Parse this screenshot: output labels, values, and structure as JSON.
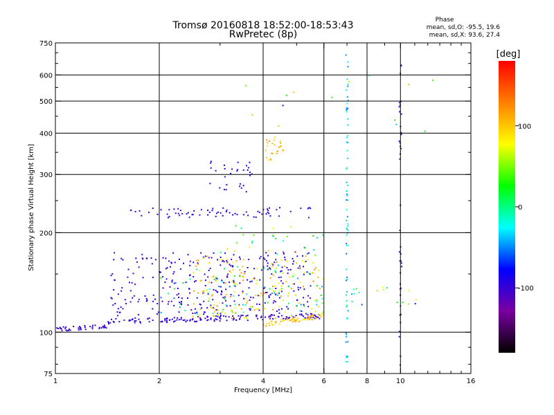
{
  "title": {
    "line1": "Tromsø 20160818 18:52:00-18:53:43",
    "line2": "RwPretec (8p)"
  },
  "phase_info": {
    "heading": "Phase",
    "line_o": "mean, sd,O: -95.5, 19.6",
    "line_x": "mean, sd,X:  93.6, 27.4"
  },
  "chart_data": {
    "type": "scatter",
    "xlabel": "Frequency [MHz]",
    "ylabel": "Stationary phase Virtual Height [km]",
    "x_scale": "log",
    "y_scale": "log",
    "xlim": [
      1,
      16
    ],
    "ylim": [
      75,
      750
    ],
    "x_ticks": [
      1,
      2,
      4,
      6,
      8,
      10,
      16
    ],
    "x_tick_labels": [
      "1",
      "2",
      "4",
      "6",
      "8",
      "10",
      "16"
    ],
    "x_minor_ticks": [
      3,
      5,
      7,
      9,
      11,
      12,
      13,
      14,
      15
    ],
    "y_ticks": [
      75,
      100,
      200,
      300,
      400,
      500,
      600,
      750
    ],
    "y_tick_labels": [
      "75",
      "100",
      "200",
      "300",
      "400",
      "500",
      "600",
      "750"
    ],
    "y_minor_ticks": [
      80,
      90,
      150,
      250,
      350,
      450,
      550,
      650,
      700
    ],
    "grid_x": [
      2,
      4,
      6,
      8,
      10
    ],
    "grid_y": [
      100,
      200,
      300,
      400,
      500,
      600
    ],
    "colorbar": {
      "label": "[deg]",
      "range": [
        -180,
        180
      ],
      "ticks": [
        -100,
        0,
        100
      ],
      "tick_labels": [
        "-100",
        "0",
        "100"
      ],
      "stops": [
        "#000000",
        "#7a00a0",
        "#0000ff",
        "#00ffff",
        "#00ff00",
        "#ffff00",
        "#ff7f00",
        "#ff0000"
      ]
    },
    "point_groups": [
      {
        "name": "o_low_trace",
        "x": [
          1.0,
          1.42
        ],
        "y": [
          102,
          104
        ],
        "spread": 1.5,
        "count": 40,
        "phase": [
          -110,
          -90
        ]
      },
      {
        "name": "o_base_trace",
        "x": [
          1.42,
          6.0
        ],
        "y": [
          108,
          112
        ],
        "spread": 2,
        "count": 150,
        "phase": [
          -110,
          -85
        ]
      },
      {
        "name": "x_base_trace",
        "x": [
          4.0,
          6.0
        ],
        "y": [
          106,
          112
        ],
        "spread": 2,
        "count": 60,
        "phase": [
          80,
          120
        ]
      },
      {
        "name": "o_scatter_cloud",
        "x": [
          1.45,
          5.5
        ],
        "y": [
          112,
          175
        ],
        "count": 320,
        "phase": [
          -115,
          -80
        ]
      },
      {
        "name": "x_scatter_cloud",
        "x": [
          2.5,
          6.0
        ],
        "y": [
          110,
          170
        ],
        "count": 160,
        "phase": [
          60,
          130
        ]
      },
      {
        "name": "mixed_scatter_cloud",
        "x": [
          2.0,
          6.0
        ],
        "y": [
          112,
          160
        ],
        "count": 70,
        "phase": [
          -60,
          40
        ]
      },
      {
        "name": "o_f_layer",
        "x": [
          1.65,
          5.6
        ],
        "y": [
          222,
          238
        ],
        "count": 70,
        "phase": [
          -110,
          -85
        ]
      },
      {
        "name": "o_f_rise",
        "x": [
          2.8,
          3.75
        ],
        "y": [
          262,
          330
        ],
        "count": 30,
        "phase": [
          -105,
          -85
        ]
      },
      {
        "name": "x_f_rise",
        "x": [
          4.05,
          4.6
        ],
        "y": [
          330,
          390
        ],
        "count": 25,
        "phase": [
          90,
          120
        ]
      },
      {
        "name": "mid_scatter",
        "x": [
          3.0,
          6.0
        ],
        "y": [
          170,
          210
        ],
        "count": 30,
        "phase": [
          -110,
          110
        ]
      },
      {
        "name": "vertical_line_7mhz",
        "x": [
          6.95,
          7.05
        ],
        "y": [
          78,
          700
        ],
        "count": 70,
        "phase": [
          -60,
          0
        ]
      },
      {
        "name": "vertical_line_10mhz",
        "x": [
          9.92,
          10.08
        ],
        "y": [
          78,
          680
        ],
        "count": 40,
        "phase": [
          -120,
          -90
        ]
      },
      {
        "name": "high_freq_scatter",
        "x": [
          7.0,
          12.0
        ],
        "y": [
          120,
          140
        ],
        "count": 18,
        "phase": [
          -110,
          120
        ]
      },
      {
        "name": "upper_sparse",
        "x": [
          3.5,
          14.0
        ],
        "y": [
          400,
          620
        ],
        "count": 14,
        "phase": [
          -110,
          120
        ]
      }
    ]
  }
}
